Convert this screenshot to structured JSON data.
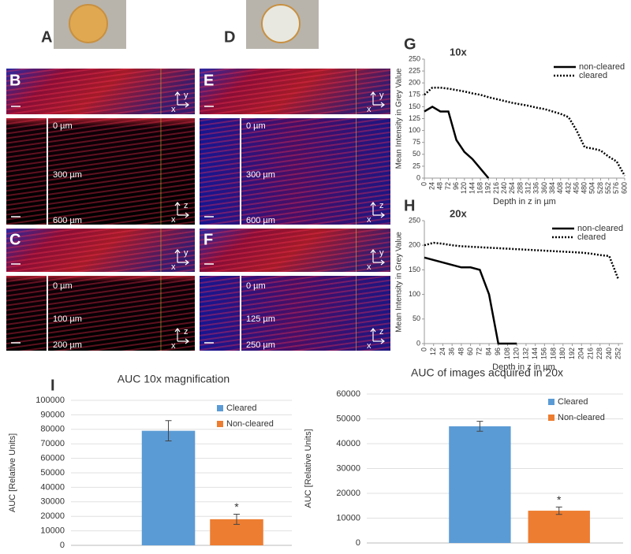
{
  "panels": {
    "letters": [
      "A",
      "B",
      "C",
      "D",
      "E",
      "F",
      "G",
      "H",
      "I"
    ],
    "depths": [
      "0 µm",
      "300 µm",
      "600 µm",
      "0 µm",
      "100 µm",
      "200 µm",
      "0 µm",
      "300 µm",
      "600 µm",
      "0 µm",
      "125 µm",
      "250 µm"
    ],
    "axis_letters": [
      "x",
      "y",
      "z"
    ]
  },
  "chart_data": [
    {
      "type": "line",
      "title": "10x",
      "xlabel": "Depth in z in µm",
      "ylabel": "Mean Intensity in Grey Value",
      "x": [
        0,
        24,
        48,
        72,
        96,
        120,
        144,
        168,
        192,
        216,
        240,
        264,
        288,
        312,
        336,
        360,
        384,
        408,
        432,
        456,
        480,
        504,
        528,
        552,
        576,
        600
      ],
      "series": [
        {
          "name": "non-cleared",
          "color": "#000000",
          "line_style": "solid",
          "values": [
            140,
            150,
            140,
            140,
            80,
            55,
            40,
            20,
            0,
            null,
            null,
            null,
            null,
            null,
            null,
            null,
            null,
            null,
            null,
            null,
            null,
            null,
            null,
            null,
            null,
            null
          ]
        },
        {
          "name": "cleared",
          "color": "#000000",
          "line_style": "dotted",
          "values": [
            175,
            190,
            190,
            188,
            185,
            182,
            178,
            175,
            170,
            166,
            162,
            158,
            155,
            152,
            148,
            145,
            140,
            135,
            128,
            100,
            65,
            62,
            58,
            45,
            35,
            5
          ]
        }
      ],
      "xlim": [
        0,
        600
      ],
      "xticks": [
        0,
        24,
        48,
        72,
        96,
        120,
        144,
        168,
        192,
        216,
        240,
        264,
        288,
        312,
        336,
        360,
        384,
        408,
        432,
        456,
        480,
        504,
        528,
        552,
        576,
        600
      ],
      "ylim": [
        0,
        250
      ],
      "yticks": [
        0,
        25,
        50,
        75,
        100,
        125,
        150,
        175,
        200,
        225,
        250
      ],
      "legend": "upper right"
    },
    {
      "type": "line",
      "title": "20x",
      "xlabel": "Depth in z in µm",
      "ylabel": "Mean Intensity in Grey Value",
      "x": [
        0,
        12,
        24,
        36,
        48,
        60,
        72,
        84,
        96,
        108,
        120,
        132,
        144,
        156,
        168,
        180,
        192,
        204,
        216,
        228,
        240,
        252
      ],
      "series": [
        {
          "name": "non-cleared",
          "color": "#000000",
          "line_style": "solid",
          "values": [
            175,
            170,
            165,
            160,
            155,
            155,
            150,
            100,
            0,
            0,
            0,
            null,
            null,
            null,
            null,
            null,
            null,
            null,
            null,
            null,
            null,
            null
          ]
        },
        {
          "name": "cleared",
          "color": "#000000",
          "line_style": "dotted",
          "values": [
            200,
            205,
            203,
            200,
            198,
            197,
            196,
            195,
            194,
            193,
            192,
            191,
            190,
            189,
            188,
            187,
            186,
            185,
            183,
            180,
            178,
            130
          ]
        }
      ],
      "xlim": [
        0,
        258
      ],
      "xticks": [
        0,
        12,
        24,
        36,
        48,
        60,
        72,
        84,
        96,
        108,
        120,
        132,
        144,
        156,
        168,
        180,
        192,
        204,
        216,
        228,
        240,
        252
      ],
      "ylim": [
        0,
        250
      ],
      "yticks": [
        0,
        50,
        100,
        150,
        200,
        250
      ],
      "legend": "upper right"
    },
    {
      "type": "bar",
      "title": "AUC 10x magnification",
      "ylabel": "AUC [Relative Units]",
      "series": [
        {
          "name": "Cleared",
          "color": "#5b9bd5",
          "values": [
            79000
          ],
          "errors": [
            7000
          ]
        },
        {
          "name": "Non-cleared",
          "color": "#ed7d31",
          "values": [
            18000
          ],
          "errors": [
            3500
          ]
        }
      ],
      "annotations": [
        "*"
      ],
      "ylim": [
        0,
        100000
      ],
      "yticks": [
        0,
        10000,
        20000,
        30000,
        40000,
        50000,
        60000,
        70000,
        80000,
        90000,
        100000
      ],
      "legend": "upper right"
    },
    {
      "type": "bar",
      "title": "AUC of images acquired in 20x",
      "ylabel": "AUC [Relative Units]",
      "series": [
        {
          "name": "Cleared",
          "color": "#5b9bd5",
          "values": [
            47000
          ],
          "errors": [
            2000
          ]
        },
        {
          "name": "Non-cleared",
          "color": "#ed7d31",
          "values": [
            13000
          ],
          "errors": [
            1500
          ]
        }
      ],
      "annotations": [
        "*"
      ],
      "ylim": [
        0,
        60000
      ],
      "yticks": [
        0,
        10000,
        20000,
        30000,
        40000,
        50000,
        60000
      ],
      "legend": "upper right"
    }
  ]
}
